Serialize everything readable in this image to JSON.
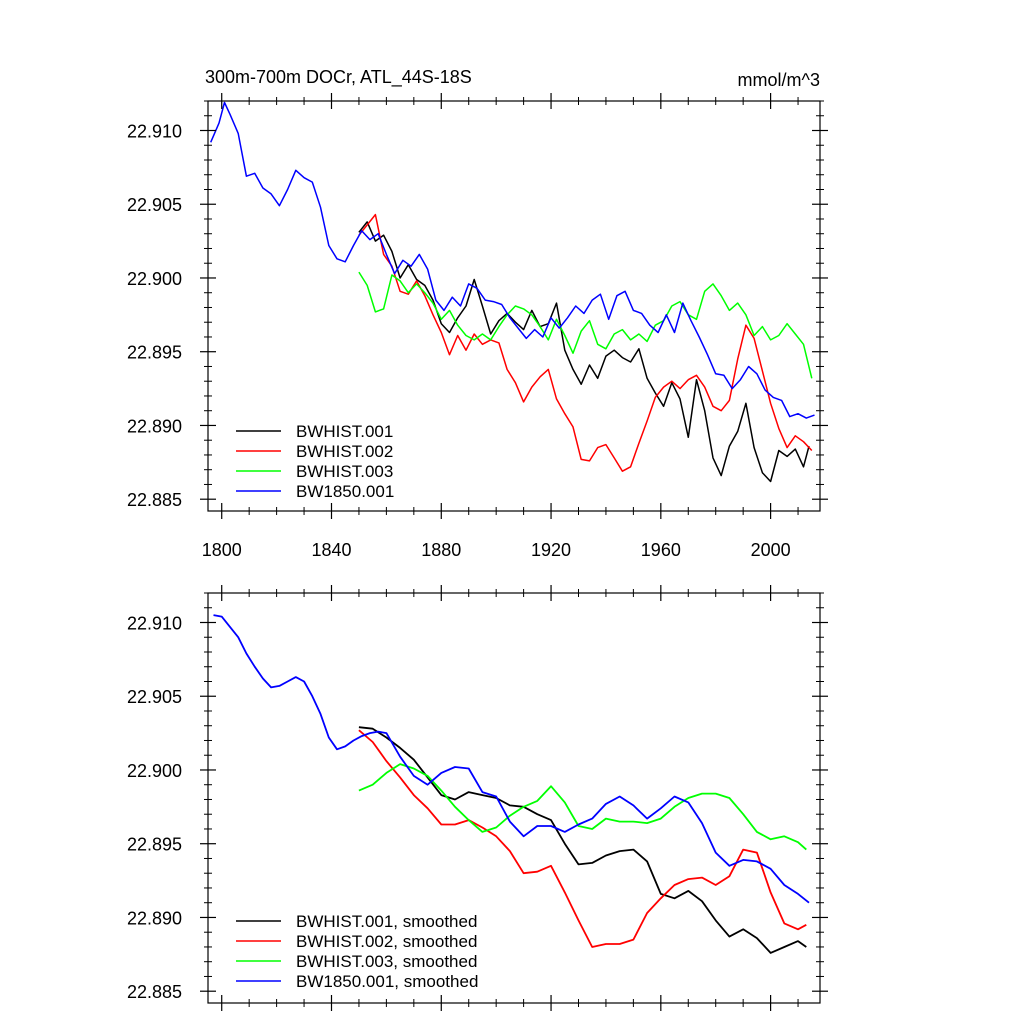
{
  "chart_data": [
    {
      "type": "line",
      "title": "300m-700m DOCr, ATL_44S-18S",
      "units": "mmol/m^3",
      "xlabel": "",
      "ylabel": "",
      "xlim": [
        1795,
        2018
      ],
      "ylim": [
        22.8842,
        22.912
      ],
      "xticks": [
        1800,
        1840,
        1880,
        1920,
        1960,
        2000
      ],
      "xtick_labels": [
        "1800",
        "1840",
        "1880",
        "1920",
        "1960",
        "2000"
      ],
      "yticks": [
        22.885,
        22.89,
        22.895,
        22.9,
        22.905,
        22.91
      ],
      "ytick_labels": [
        "22.885",
        "22.890",
        "22.895",
        "22.900",
        "22.905",
        "22.910"
      ],
      "legend_position": "bottom-left",
      "series": [
        {
          "name": "BWHIST.001",
          "color": "#000000",
          "x": [
            1850,
            1853,
            1856,
            1859,
            1862,
            1865,
            1868,
            1871,
            1874,
            1877,
            1880,
            1883,
            1886,
            1889,
            1892,
            1895,
            1898,
            1901,
            1904,
            1907,
            1910,
            1913,
            1916,
            1919,
            1922,
            1925,
            1928,
            1931,
            1934,
            1937,
            1940,
            1943,
            1946,
            1949,
            1952,
            1955,
            1958,
            1961,
            1964,
            1967,
            1970,
            1973,
            1976,
            1979,
            1982,
            1985,
            1988,
            1991,
            1994,
            1997,
            2000,
            2003,
            2006,
            2009,
            2012,
            2014
          ],
          "y": [
            22.9031,
            22.9038,
            22.9025,
            22.9029,
            22.9018,
            22.9,
            22.9009,
            22.8999,
            22.8995,
            22.8985,
            22.8969,
            22.8963,
            22.8973,
            22.8981,
            22.8999,
            22.8981,
            22.8962,
            22.8971,
            22.8976,
            22.897,
            22.8965,
            22.8978,
            22.8967,
            22.8969,
            22.8983,
            22.8951,
            22.8938,
            22.8928,
            22.8941,
            22.8932,
            22.8947,
            22.8951,
            22.8946,
            22.8943,
            22.8952,
            22.8932,
            22.8922,
            22.8913,
            22.8929,
            22.8918,
            22.8892,
            22.8931,
            22.891,
            22.8878,
            22.8866,
            22.8886,
            22.8896,
            22.8915,
            22.8885,
            22.8868,
            22.8862,
            22.8883,
            22.8879,
            22.8884,
            22.8872,
            22.8886
          ]
        },
        {
          "name": "BWHIST.002",
          "color": "#ff0000",
          "x": [
            1850,
            1853,
            1856,
            1859,
            1862,
            1865,
            1868,
            1871,
            1874,
            1877,
            1880,
            1883,
            1886,
            1889,
            1892,
            1895,
            1898,
            1901,
            1904,
            1907,
            1910,
            1913,
            1916,
            1919,
            1922,
            1925,
            1928,
            1931,
            1934,
            1937,
            1940,
            1943,
            1946,
            1949,
            1952,
            1955,
            1958,
            1961,
            1964,
            1967,
            1970,
            1973,
            1976,
            1979,
            1982,
            1985,
            1988,
            1991,
            1994,
            1997,
            2000,
            2003,
            2006,
            2009,
            2012,
            2015
          ],
          "y": [
            22.9029,
            22.9036,
            22.9043,
            22.9016,
            22.9008,
            22.8991,
            22.8989,
            22.8998,
            22.8988,
            22.8975,
            22.8963,
            22.8948,
            22.8961,
            22.8951,
            22.8962,
            22.8955,
            22.8958,
            22.8956,
            22.8938,
            22.8929,
            22.8916,
            22.8926,
            22.8933,
            22.8938,
            22.8918,
            22.8908,
            22.8899,
            22.8877,
            22.8876,
            22.8885,
            22.8887,
            22.8878,
            22.8869,
            22.8872,
            22.8888,
            22.8903,
            22.8919,
            22.8926,
            22.893,
            22.8925,
            22.8931,
            22.8934,
            22.8926,
            22.8913,
            22.891,
            22.8917,
            22.8945,
            22.8968,
            22.8959,
            22.8937,
            22.8915,
            22.8898,
            22.8885,
            22.8893,
            22.8889,
            22.8883
          ]
        },
        {
          "name": "BWHIST.003",
          "color": "#00ff00",
          "x": [
            1850,
            1853,
            1856,
            1859,
            1862,
            1865,
            1868,
            1871,
            1874,
            1877,
            1880,
            1883,
            1886,
            1889,
            1892,
            1895,
            1898,
            1901,
            1904,
            1907,
            1910,
            1913,
            1916,
            1919,
            1922,
            1925,
            1928,
            1931,
            1934,
            1937,
            1940,
            1943,
            1946,
            1949,
            1952,
            1955,
            1958,
            1961,
            1964,
            1967,
            1970,
            1973,
            1976,
            1979,
            1982,
            1985,
            1988,
            1991,
            1994,
            1997,
            2000,
            2003,
            2006,
            2009,
            2012,
            2015
          ],
          "y": [
            22.9004,
            22.8995,
            22.8977,
            22.8979,
            22.9002,
            22.8998,
            22.899,
            22.8996,
            22.899,
            22.8983,
            22.8972,
            22.8978,
            22.8968,
            22.8961,
            22.8958,
            22.8962,
            22.8958,
            22.8967,
            22.8975,
            22.8981,
            22.8979,
            22.8975,
            22.8967,
            22.8958,
            22.8972,
            22.8961,
            22.8949,
            22.8964,
            22.8971,
            22.8955,
            22.8952,
            22.8962,
            22.8965,
            22.8958,
            22.8962,
            22.8957,
            22.8968,
            22.8971,
            22.8981,
            22.8984,
            22.8975,
            22.8972,
            22.8991,
            22.8996,
            22.8988,
            22.8978,
            22.8983,
            22.8975,
            22.8961,
            22.8967,
            22.8958,
            22.8961,
            22.8969,
            22.8962,
            22.8955,
            22.8932
          ]
        },
        {
          "name": "BW1850.001",
          "color": "#0000ff",
          "x": [
            1796,
            1799,
            1801,
            1803,
            1806,
            1809,
            1812,
            1815,
            1818,
            1821,
            1824,
            1827,
            1830,
            1833,
            1836,
            1839,
            1842,
            1845,
            1848,
            1851,
            1854,
            1857,
            1860,
            1863,
            1866,
            1869,
            1872,
            1875,
            1878,
            1881,
            1884,
            1887,
            1890,
            1893,
            1896,
            1899,
            1902,
            1905,
            1908,
            1911,
            1914,
            1917,
            1920,
            1923,
            1926,
            1929,
            1932,
            1935,
            1938,
            1941,
            1944,
            1947,
            1950,
            1953,
            1956,
            1959,
            1962,
            1965,
            1968,
            1971,
            1974,
            1977,
            1980,
            1983,
            1986,
            1989,
            1992,
            1995,
            1998,
            2001,
            2004,
            2007,
            2010,
            2013,
            2016
          ],
          "y": [
            22.9092,
            22.9105,
            22.9119,
            22.9111,
            22.9098,
            22.9069,
            22.9071,
            22.9061,
            22.9057,
            22.9049,
            22.906,
            22.9073,
            22.9068,
            22.9065,
            22.9048,
            22.9022,
            22.9013,
            22.9011,
            22.9022,
            22.9032,
            22.9026,
            22.903,
            22.9016,
            22.9003,
            22.9012,
            22.9008,
            22.9016,
            22.9006,
            22.8985,
            22.8978,
            22.8987,
            22.8981,
            22.8996,
            22.8993,
            22.8985,
            22.8984,
            22.8982,
            22.8973,
            22.8966,
            22.8959,
            22.8965,
            22.896,
            22.8973,
            22.8966,
            22.8973,
            22.8981,
            22.8976,
            22.8985,
            22.8989,
            22.8972,
            22.8988,
            22.8991,
            22.8978,
            22.8976,
            22.8968,
            22.8963,
            22.8975,
            22.8963,
            22.8983,
            22.8971,
            22.896,
            22.8948,
            22.8935,
            22.8934,
            22.8925,
            22.8931,
            22.894,
            22.8935,
            22.8924,
            22.8919,
            22.8917,
            22.8906,
            22.8908,
            22.8905,
            22.8907
          ]
        }
      ]
    },
    {
      "type": "line",
      "title": "",
      "xlabel": "",
      "ylabel": "",
      "xlim": [
        1795,
        2018
      ],
      "ylim": [
        22.8842,
        22.912
      ],
      "xticks": [
        1800,
        1840,
        1880,
        1920,
        1960,
        2000
      ],
      "xtick_labels": [],
      "yticks": [
        22.885,
        22.89,
        22.895,
        22.9,
        22.905,
        22.91
      ],
      "ytick_labels": [
        "22.885",
        "22.890",
        "22.895",
        "22.900",
        "22.905",
        "22.910"
      ],
      "legend_position": "bottom-left",
      "series": [
        {
          "name": "BWHIST.001, smoothed",
          "color": "#000000",
          "x": [
            1850,
            1855,
            1860,
            1865,
            1870,
            1875,
            1880,
            1885,
            1890,
            1895,
            1900,
            1905,
            1910,
            1915,
            1920,
            1925,
            1930,
            1935,
            1940,
            1945,
            1950,
            1955,
            1960,
            1965,
            1970,
            1975,
            1980,
            1985,
            1990,
            1995,
            2000,
            2005,
            2010,
            2013
          ],
          "y": [
            22.9029,
            22.9028,
            22.9022,
            22.9015,
            22.9007,
            22.8995,
            22.8983,
            22.898,
            22.8985,
            22.8983,
            22.8981,
            22.8976,
            22.8975,
            22.897,
            22.8966,
            22.895,
            22.8936,
            22.8937,
            22.8942,
            22.8945,
            22.8946,
            22.8938,
            22.8916,
            22.8913,
            22.8918,
            22.8911,
            22.8898,
            22.8887,
            22.8892,
            22.8886,
            22.8876,
            22.888,
            22.8884,
            22.888
          ]
        },
        {
          "name": "BWHIST.002, smoothed",
          "color": "#ff0000",
          "x": [
            1850,
            1855,
            1860,
            1865,
            1870,
            1875,
            1880,
            1885,
            1890,
            1895,
            1900,
            1905,
            1910,
            1915,
            1920,
            1925,
            1930,
            1935,
            1940,
            1945,
            1950,
            1955,
            1960,
            1965,
            1970,
            1975,
            1980,
            1985,
            1990,
            1995,
            2000,
            2005,
            2010,
            2013
          ],
          "y": [
            22.9027,
            22.9019,
            22.9006,
            22.8995,
            22.8983,
            22.8974,
            22.8963,
            22.8963,
            22.8966,
            22.8961,
            22.8955,
            22.8945,
            22.893,
            22.8931,
            22.8935,
            22.8917,
            22.8898,
            22.888,
            22.8882,
            22.8882,
            22.8885,
            22.8903,
            22.8913,
            22.8922,
            22.8926,
            22.8927,
            22.8922,
            22.8928,
            22.8946,
            22.8944,
            22.8917,
            22.8896,
            22.8892,
            22.8895
          ]
        },
        {
          "name": "BWHIST.003, smoothed",
          "color": "#00ff00",
          "x": [
            1850,
            1855,
            1860,
            1865,
            1870,
            1875,
            1880,
            1885,
            1890,
            1895,
            1900,
            1905,
            1910,
            1915,
            1920,
            1925,
            1930,
            1935,
            1940,
            1945,
            1950,
            1955,
            1960,
            1965,
            1970,
            1975,
            1980,
            1985,
            1990,
            1995,
            2000,
            2005,
            2010,
            2013
          ],
          "y": [
            22.8986,
            22.899,
            22.8998,
            22.9004,
            22.9001,
            22.8996,
            22.8986,
            22.8975,
            22.8966,
            22.8958,
            22.8961,
            22.8969,
            22.8975,
            22.8979,
            22.8989,
            22.8978,
            22.8962,
            22.896,
            22.8967,
            22.8965,
            22.8965,
            22.8964,
            22.8967,
            22.8975,
            22.8981,
            22.8984,
            22.8984,
            22.8981,
            22.897,
            22.8958,
            22.8953,
            22.8955,
            22.8951,
            22.8946
          ]
        },
        {
          "name": "BW1850.001, smoothed",
          "color": "#0000ff",
          "x": [
            1797,
            1800,
            1803,
            1806,
            1809,
            1812,
            1815,
            1818,
            1821,
            1824,
            1827,
            1830,
            1833,
            1836,
            1839,
            1842,
            1845,
            1848,
            1851,
            1854,
            1857,
            1860,
            1865,
            1870,
            1875,
            1880,
            1885,
            1890,
            1895,
            1900,
            1905,
            1910,
            1915,
            1920,
            1925,
            1930,
            1935,
            1940,
            1945,
            1950,
            1955,
            1960,
            1965,
            1970,
            1975,
            1980,
            1985,
            1990,
            1995,
            2000,
            2005,
            2010,
            2014
          ],
          "y": [
            22.9105,
            22.9104,
            22.9097,
            22.909,
            22.9079,
            22.907,
            22.9062,
            22.9056,
            22.9057,
            22.906,
            22.9063,
            22.906,
            22.905,
            22.9038,
            22.9022,
            22.9014,
            22.9016,
            22.902,
            22.9023,
            22.9025,
            22.9026,
            22.9025,
            22.9009,
            22.8996,
            22.899,
            22.8998,
            22.9002,
            22.9001,
            22.8985,
            22.8982,
            22.8965,
            22.8955,
            22.8962,
            22.8962,
            22.8958,
            22.8963,
            22.8967,
            22.8977,
            22.8982,
            22.8976,
            22.8967,
            22.8974,
            22.8982,
            22.8978,
            22.8964,
            22.8944,
            22.8935,
            22.8939,
            22.8938,
            22.8933,
            22.8922,
            22.8916,
            22.891
          ]
        }
      ]
    }
  ]
}
